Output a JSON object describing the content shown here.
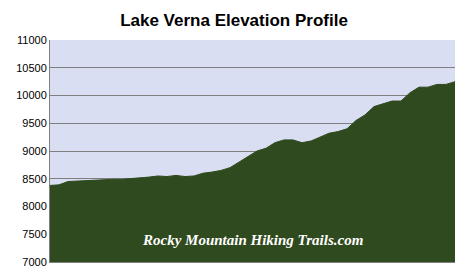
{
  "chart_data": {
    "type": "area",
    "title": "Lake Verna Elevation Profile",
    "categories": [
      null,
      null,
      null,
      null,
      null,
      null,
      null,
      null,
      null,
      null,
      null,
      null,
      null,
      null,
      null,
      null,
      null,
      null,
      null,
      null,
      null,
      null,
      null,
      null,
      null,
      null,
      null,
      null,
      null,
      null,
      null,
      null,
      null,
      null,
      null,
      null,
      null,
      null,
      null,
      null,
      null,
      null,
      null,
      null,
      null,
      null
    ],
    "values": [
      8380,
      8390,
      8450,
      8460,
      8470,
      8480,
      8480,
      8490,
      8490,
      8500,
      8510,
      8530,
      8550,
      8540,
      8560,
      8540,
      8550,
      8600,
      8620,
      8650,
      8700,
      8800,
      8900,
      9000,
      9050,
      9150,
      9200,
      9200,
      9150,
      9180,
      9250,
      9320,
      9350,
      9400,
      9550,
      9650,
      9800,
      9850,
      9900,
      9900,
      10050,
      10150,
      10150,
      10200,
      10200,
      10250
    ],
    "color": "#2f4a1e",
    "ylim": [
      7000,
      11000
    ],
    "yticks": [
      7000,
      7500,
      8000,
      8500,
      9000,
      9500,
      10000,
      10500,
      11000
    ],
    "grid": true,
    "tick_labels": "y",
    "annotations": [
      "Rocky Mountain Hiking Trails.com"
    ]
  }
}
